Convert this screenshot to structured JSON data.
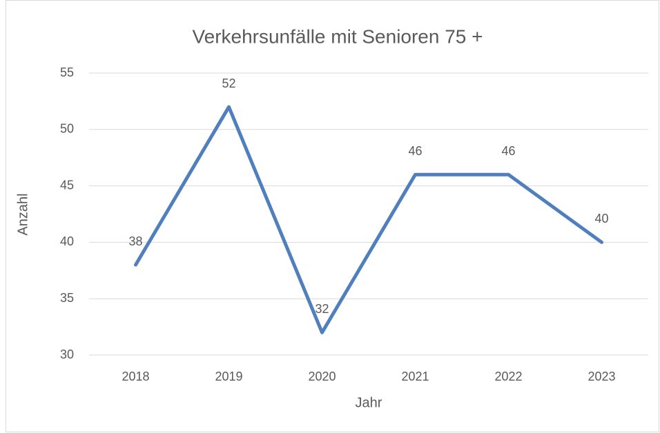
{
  "chart_data": {
    "type": "line",
    "title": "Verkehrsunfälle mit Senioren 75 +",
    "x_label": "Jahr",
    "y_label": "Anzahl",
    "categories": [
      "2018",
      "2019",
      "2020",
      "2021",
      "2022",
      "2023"
    ],
    "values": [
      38,
      52,
      32,
      46,
      46,
      40
    ],
    "color": "#4f7fbc",
    "ylim": [
      30,
      55
    ],
    "yticks": [
      30,
      35,
      40,
      45,
      50,
      55
    ],
    "grid": true
  }
}
